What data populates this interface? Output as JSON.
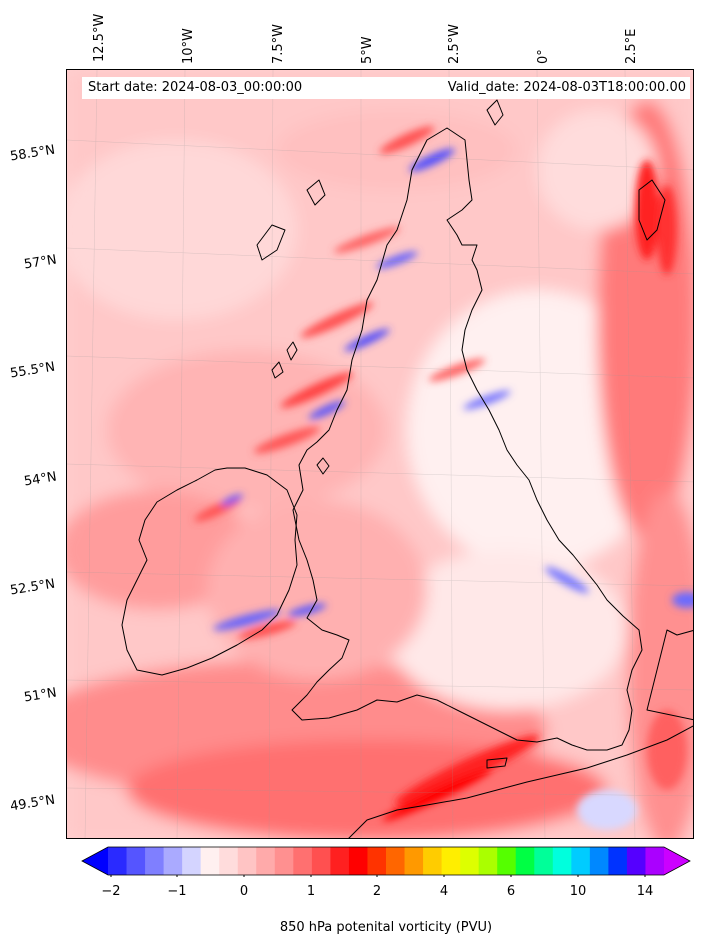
{
  "map": {
    "start_date": "Start date: 2024-08-03_00:00:00",
    "valid_date": "Valid_date: 2024-08-03T18:00:00.00",
    "lon_labels": [
      "12.5°W",
      "10°W",
      "7.5°W",
      "5°W",
      "2.5°W",
      "0°",
      "2.5°E"
    ],
    "lat_labels": [
      "58.5°N",
      "57°N",
      "55.5°N",
      "54°N",
      "52.5°N",
      "51°N",
      "49.5°N"
    ],
    "colors": {
      "background": "#ffd0d0",
      "land_outline": "#000000",
      "strong_red": "#ff2020",
      "blue": "#3030ff"
    }
  },
  "colorbar": {
    "label": "850 hPa potenital vorticity (PVU)",
    "tick_labels": [
      "−2",
      "−1",
      "0",
      "1",
      "2",
      "4",
      "6",
      "10",
      "14"
    ],
    "colors": [
      "#0000ff",
      "#2a2aff",
      "#5555ff",
      "#7f7fff",
      "#aaaaff",
      "#d4d4ff",
      "#fff0f0",
      "#ffdcdc",
      "#ffc4c4",
      "#ffaaaa",
      "#ff9090",
      "#ff7070",
      "#ff5050",
      "#ff2020",
      "#ff0000",
      "#ff3300",
      "#ff6600",
      "#ff9900",
      "#ffcc00",
      "#ffee00",
      "#ddff00",
      "#aaff00",
      "#55ff00",
      "#00ff44",
      "#00ff99",
      "#00ffdd",
      "#00ccff",
      "#0088ff",
      "#0033ff",
      "#5500ff",
      "#aa00ff",
      "#cc00ff"
    ]
  }
}
